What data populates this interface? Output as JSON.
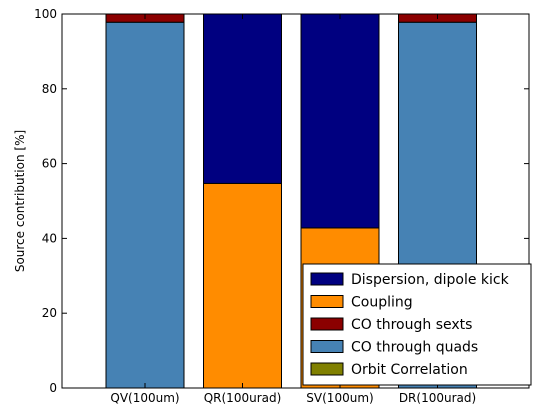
{
  "chart_data": {
    "type": "bar",
    "stacked": true,
    "categories": [
      "QV(100um)",
      "QR(100urad)",
      "SV(100um)",
      "DR(100urad)"
    ],
    "ylabel": "Source contribution [%]",
    "xlabel": "",
    "ylim": [
      0,
      100
    ],
    "yticks": [
      0,
      20,
      40,
      60,
      80,
      100
    ],
    "grid": false,
    "legend_position": "lower-right",
    "series": [
      {
        "name": "Orbit Correlation",
        "color": "#808000",
        "values": [
          0,
          0,
          0,
          0
        ]
      },
      {
        "name": "CO through quads",
        "color": "#4682B4",
        "values": [
          97.8,
          0,
          0,
          97.8
        ]
      },
      {
        "name": "CO through sexts",
        "color": "#8B0000",
        "values": [
          2.2,
          0,
          0,
          2.2
        ]
      },
      {
        "name": "Coupling",
        "color": "#FF8C00",
        "values": [
          0,
          54.7,
          42.8,
          0
        ]
      },
      {
        "name": "Dispersion, dipole kick",
        "color": "#000080",
        "values": [
          0,
          45.3,
          57.2,
          0
        ]
      }
    ],
    "legend_order": [
      "Dispersion, dipole kick",
      "Coupling",
      "CO through sexts",
      "CO through quads",
      "Orbit Correlation"
    ]
  }
}
